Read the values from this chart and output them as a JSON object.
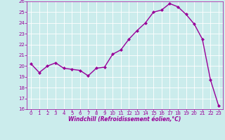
{
  "x": [
    0,
    1,
    2,
    3,
    4,
    5,
    6,
    7,
    8,
    9,
    10,
    11,
    12,
    13,
    14,
    15,
    16,
    17,
    18,
    19,
    20,
    21,
    22,
    23
  ],
  "y": [
    20.2,
    19.4,
    20.0,
    20.3,
    19.8,
    19.7,
    19.6,
    19.1,
    19.8,
    19.9,
    21.1,
    21.5,
    22.5,
    23.3,
    24.0,
    25.0,
    25.2,
    25.8,
    25.5,
    24.8,
    23.9,
    22.5,
    18.7,
    16.3
  ],
  "line_color": "#990099",
  "marker": "D",
  "marker_size": 2,
  "bg_color": "#cbecec",
  "grid_color": "#ffffff",
  "xlabel": "Windchill (Refroidissement éolien,°C)",
  "xlabel_color": "#990099",
  "tick_color": "#990099",
  "ylim": [
    16,
    26
  ],
  "xlim": [
    -0.5,
    23.5
  ],
  "yticks": [
    16,
    17,
    18,
    19,
    20,
    21,
    22,
    23,
    24,
    25,
    26
  ],
  "xticks": [
    0,
    1,
    2,
    3,
    4,
    5,
    6,
    7,
    8,
    9,
    10,
    11,
    12,
    13,
    14,
    15,
    16,
    17,
    18,
    19,
    20,
    21,
    22,
    23
  ],
  "line_width": 1.0,
  "spine_color": "#990099"
}
